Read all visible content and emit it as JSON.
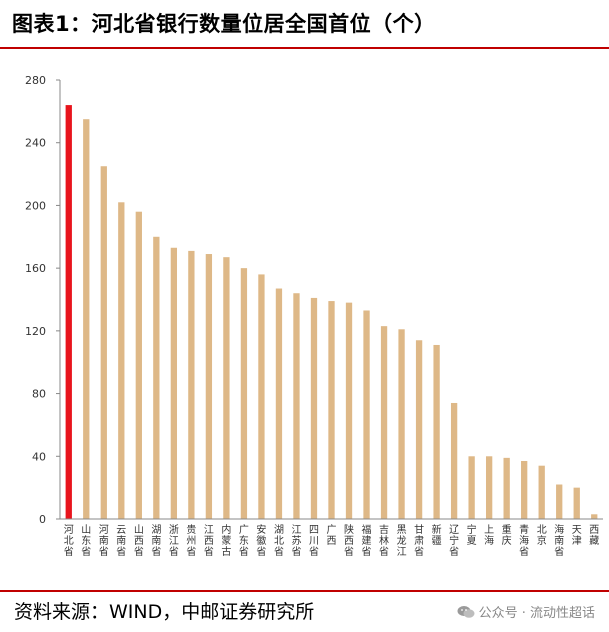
{
  "header": {
    "title": "图表1：河北省银行数量位居全国首位（个）"
  },
  "footer": {
    "source": "资料来源：WIND，中邮证券研究所",
    "watermark": "公众号 · 流动性超话"
  },
  "colors": {
    "highlight": "#e8141c",
    "bar": "#deb887",
    "rule": "#c00000"
  },
  "icons": {
    "watermark": "wechat-icon"
  },
  "chart_data": {
    "type": "bar",
    "title": "",
    "xlabel": "",
    "ylabel": "",
    "ylim": [
      0,
      280
    ],
    "yticks": [
      0,
      40,
      80,
      120,
      160,
      200,
      240,
      280
    ],
    "grid": false,
    "legend": "none",
    "highlight_index": 0,
    "categories": [
      "河北省",
      "山东省",
      "河南省",
      "云南省",
      "山西省",
      "湖南省",
      "浙江省",
      "贵州省",
      "江西省",
      "内蒙古",
      "广东省",
      "安徽省",
      "湖北省",
      "江苏省",
      "四川省",
      "广西",
      "陕西省",
      "福建省",
      "吉林省",
      "黑龙江",
      "甘肃省",
      "新疆",
      "辽宁省",
      "宁夏",
      "上海",
      "重庆",
      "青海省",
      "北京",
      "海南省",
      "天津",
      "西藏"
    ],
    "values": [
      264,
      255,
      225,
      202,
      196,
      180,
      173,
      171,
      169,
      167,
      160,
      156,
      147,
      144,
      141,
      139,
      138,
      133,
      123,
      121,
      114,
      111,
      74,
      40,
      40,
      39,
      37,
      34,
      22,
      20,
      3
    ]
  }
}
